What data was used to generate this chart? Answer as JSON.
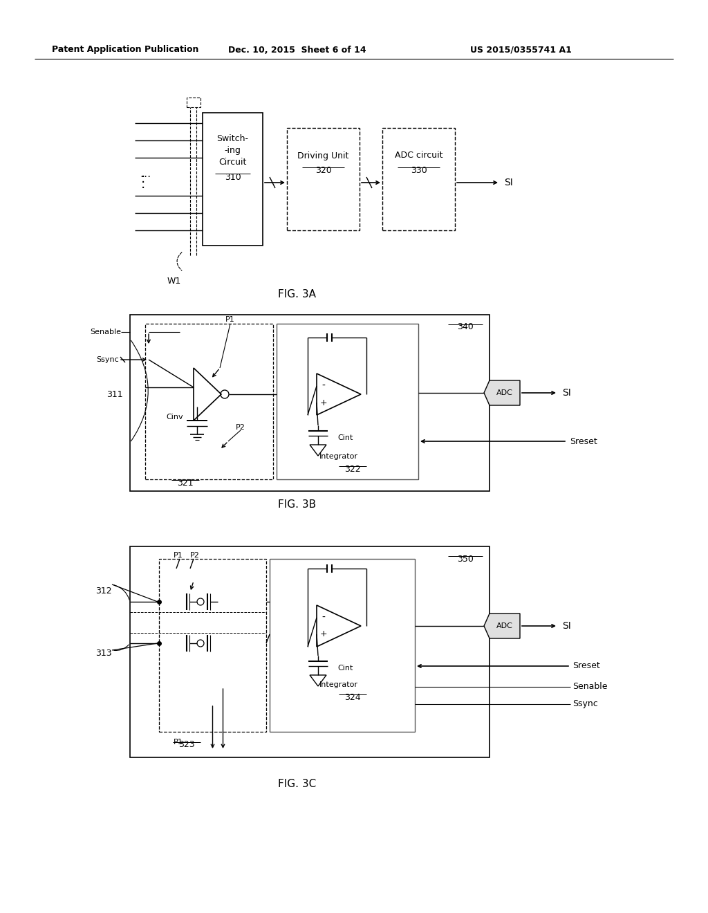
{
  "bg_color": "#ffffff",
  "text_color": "#000000",
  "line_color": "#000000",
  "header_left": "Patent Application Publication",
  "header_mid": "Dec. 10, 2015  Sheet 6 of 14",
  "header_right": "US 2015/0355741 A1",
  "fig3a_label": "FIG. 3A",
  "fig3b_label": "FIG. 3B",
  "fig3c_label": "FIG. 3C"
}
